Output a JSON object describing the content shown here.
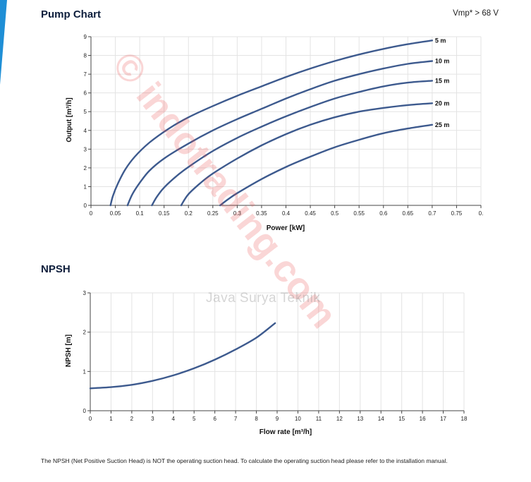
{
  "header": {
    "pump_title": "Pump Chart",
    "vmp": "Vmp* > 68 V",
    "npsh_title": "NPSH"
  },
  "chart_data": [
    {
      "type": "line",
      "xlabel": "Power [kW]",
      "ylabel": "Output [m³/h]",
      "xlim": [
        0,
        0.8
      ],
      "ylim": [
        0,
        9
      ],
      "x_ticks": [
        "0",
        "0.05",
        "0.1",
        "0.15",
        "0.2",
        "0.25",
        "0.3",
        "0.35",
        "0.4",
        "0.45",
        "0.5",
        "0.55",
        "0.6",
        "0.65",
        "0.7",
        "0.75",
        "0."
      ],
      "y_ticks": [
        "0",
        "1",
        "2",
        "3",
        "4",
        "5",
        "6",
        "7",
        "8",
        "9"
      ],
      "grid": true,
      "series": [
        {
          "name": "5 m",
          "x": [
            0.04,
            0.045,
            0.055,
            0.07,
            0.09,
            0.12,
            0.16,
            0.2,
            0.25,
            0.3,
            0.35,
            0.4,
            0.45,
            0.5,
            0.55,
            0.6,
            0.65,
            0.7
          ],
          "y": [
            0,
            0.5,
            1.15,
            1.9,
            2.6,
            3.35,
            4.1,
            4.7,
            5.3,
            5.85,
            6.35,
            6.85,
            7.3,
            7.7,
            8.05,
            8.35,
            8.6,
            8.8
          ]
        },
        {
          "name": "10 m",
          "x": [
            0.075,
            0.085,
            0.1,
            0.12,
            0.15,
            0.2,
            0.25,
            0.3,
            0.35,
            0.4,
            0.45,
            0.5,
            0.55,
            0.6,
            0.65,
            0.7
          ],
          "y": [
            0,
            0.6,
            1.2,
            1.85,
            2.5,
            3.3,
            4.0,
            4.6,
            5.15,
            5.7,
            6.2,
            6.65,
            7.0,
            7.3,
            7.55,
            7.7
          ]
        },
        {
          "name": "15 m",
          "x": [
            0.125,
            0.135,
            0.15,
            0.175,
            0.2,
            0.25,
            0.3,
            0.35,
            0.4,
            0.45,
            0.5,
            0.55,
            0.6,
            0.65,
            0.7
          ],
          "y": [
            0,
            0.45,
            0.95,
            1.55,
            2.05,
            2.9,
            3.6,
            4.2,
            4.75,
            5.25,
            5.7,
            6.05,
            6.35,
            6.55,
            6.65
          ]
        },
        {
          "name": "20 m",
          "x": [
            0.185,
            0.2,
            0.225,
            0.25,
            0.3,
            0.35,
            0.4,
            0.45,
            0.5,
            0.55,
            0.6,
            0.65,
            0.7
          ],
          "y": [
            0,
            0.6,
            1.2,
            1.7,
            2.5,
            3.2,
            3.8,
            4.3,
            4.7,
            5.0,
            5.2,
            5.35,
            5.45
          ]
        },
        {
          "name": "25 m",
          "x": [
            0.265,
            0.28,
            0.3,
            0.35,
            0.4,
            0.45,
            0.5,
            0.55,
            0.6,
            0.65,
            0.7
          ],
          "y": [
            0,
            0.3,
            0.65,
            1.4,
            2.05,
            2.6,
            3.1,
            3.5,
            3.85,
            4.1,
            4.3
          ]
        }
      ]
    },
    {
      "type": "line",
      "xlabel": "Flow rate [m³/h]",
      "ylabel": "NPSH [m]",
      "xlim": [
        0,
        18
      ],
      "ylim": [
        0,
        3
      ],
      "x_ticks": [
        "0",
        "1",
        "2",
        "3",
        "4",
        "5",
        "6",
        "7",
        "8",
        "9",
        "10",
        "11",
        "12",
        "13",
        "14",
        "15",
        "16",
        "17",
        "18"
      ],
      "y_ticks": [
        "0",
        "1",
        "2",
        "3"
      ],
      "grid": true,
      "series": [
        {
          "name": "",
          "x": [
            0,
            1,
            2,
            3,
            4,
            5,
            6,
            7,
            8,
            8.9
          ],
          "y": [
            0.57,
            0.6,
            0.66,
            0.76,
            0.9,
            1.08,
            1.3,
            1.56,
            1.86,
            2.23
          ]
        }
      ]
    }
  ],
  "watermark": {
    "text": "© indotrading.com",
    "brand": "Java Surya Teknik"
  },
  "footer": {
    "note": "The NPSH (Net Positive Suction Head) is NOT the operating suction head. To calculate the operating suction head please refer to the installation manual."
  }
}
